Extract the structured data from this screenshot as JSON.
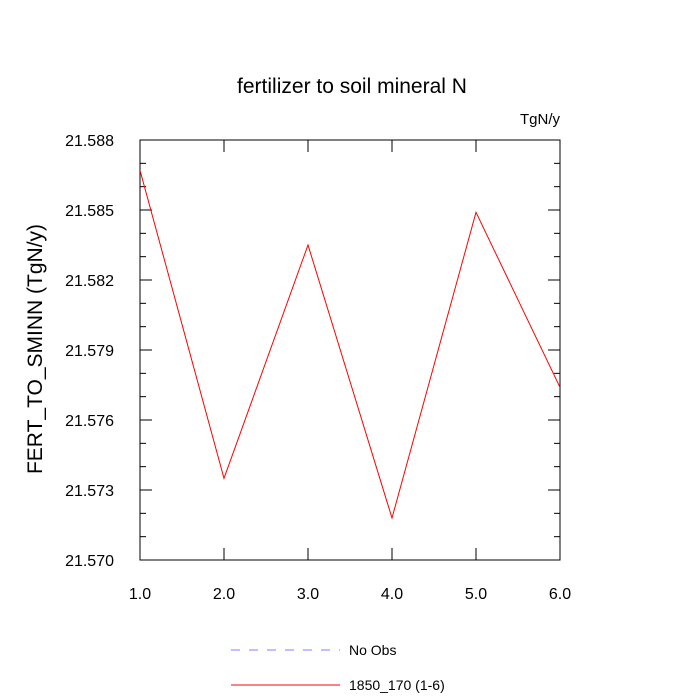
{
  "chart_data": {
    "type": "line",
    "title": "fertilizer to soil mineral N",
    "units_label": "TgN/y",
    "ylabel": "FERT_TO_SMINN  (TgN/y)",
    "xlabel": "",
    "xlim": [
      1.0,
      6.0
    ],
    "ylim": [
      21.57,
      21.588
    ],
    "x_ticks": [
      1.0,
      2.0,
      3.0,
      4.0,
      5.0,
      6.0
    ],
    "x_tick_labels": [
      "1.0",
      "2.0",
      "3.0",
      "4.0",
      "5.0",
      "6.0"
    ],
    "y_ticks": [
      21.57,
      21.573,
      21.576,
      21.579,
      21.582,
      21.585,
      21.588
    ],
    "y_tick_labels": [
      "21.570",
      "21.573",
      "21.576",
      "21.579",
      "21.582",
      "21.585",
      "21.588"
    ],
    "grid": false,
    "legend_position": "bottom-center",
    "series": [
      {
        "name": "No Obs",
        "color": "#8080ff",
        "dash": true,
        "x": [],
        "values": []
      },
      {
        "name": "1850_170 (1-6)",
        "color": "#ff0000",
        "dash": false,
        "x": [
          1.0,
          2.0,
          3.0,
          4.0,
          5.0,
          6.0
        ],
        "values": [
          21.5867,
          21.5735,
          21.5835,
          21.5718,
          21.5849,
          21.5774
        ]
      }
    ]
  }
}
